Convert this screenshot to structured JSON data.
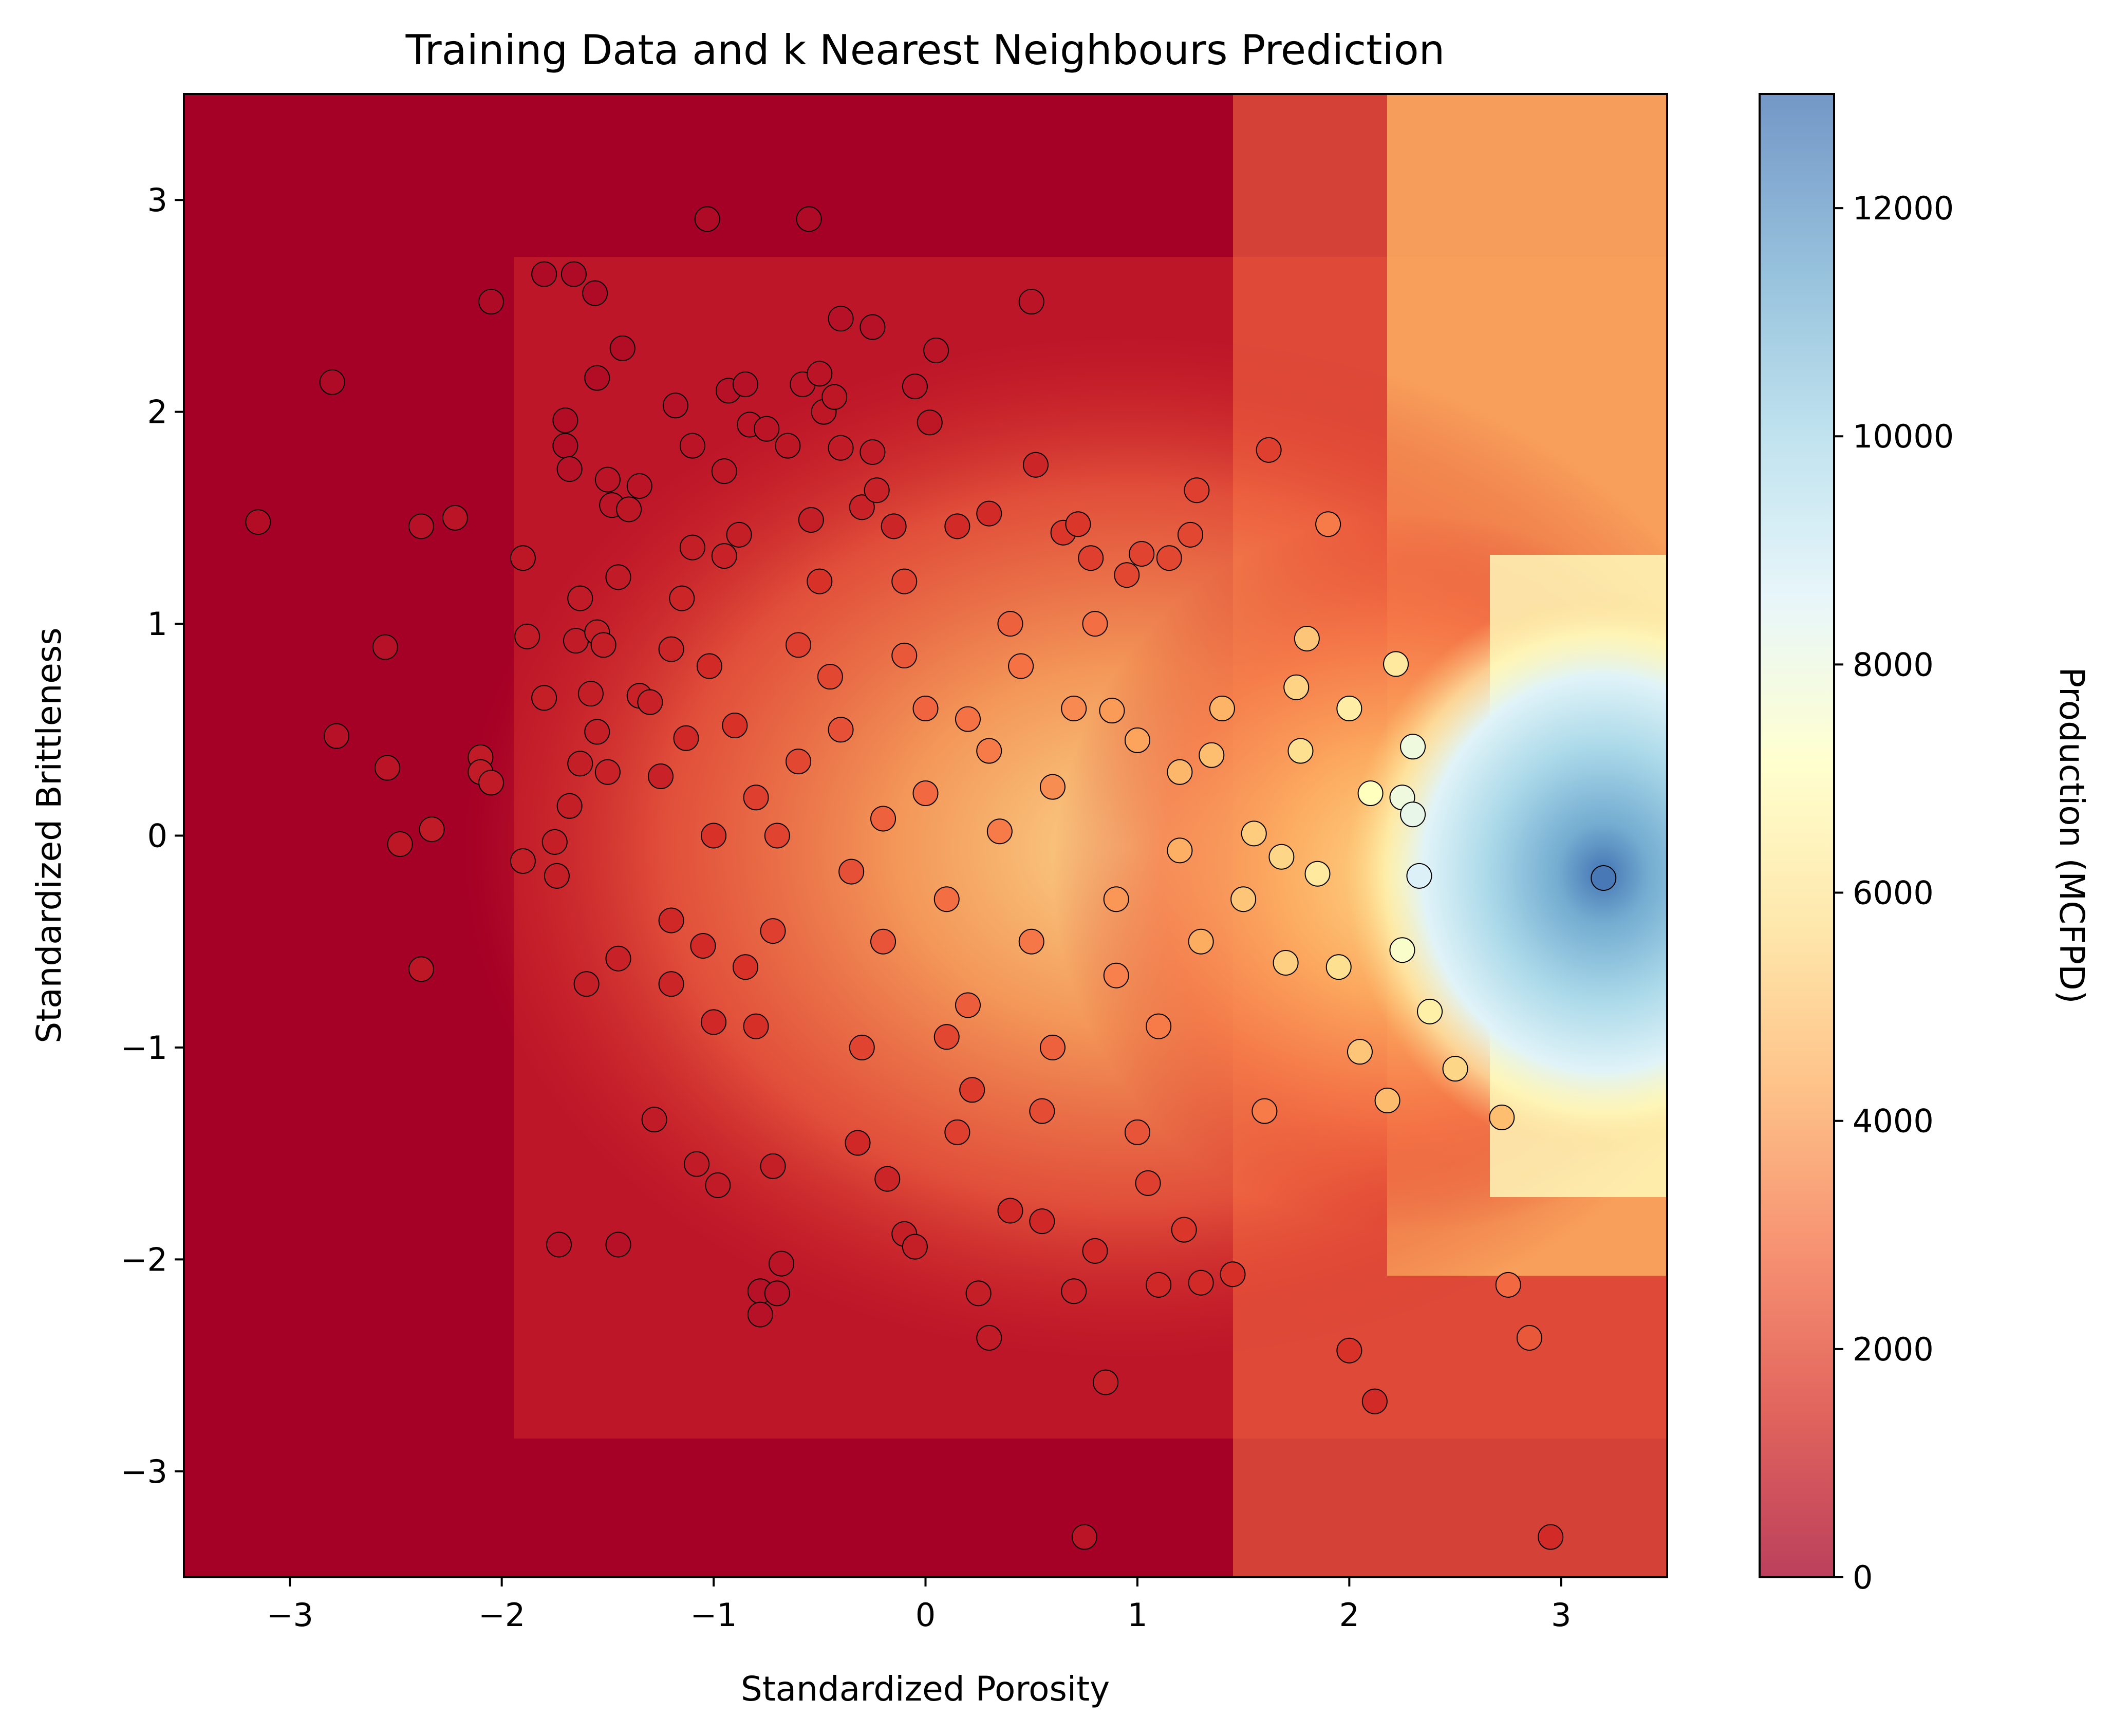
{
  "chart_data": {
    "type": "scatter",
    "title": "Training Data and k Nearest Neighbours Prediction",
    "xlabel": "Standardized Porosity",
    "ylabel": "Standardized Brittleness",
    "xlim": [
      -3.5,
      3.5
    ],
    "ylim": [
      -3.5,
      3.5
    ],
    "xticks": [
      -3,
      -2,
      -1,
      0,
      1,
      2,
      3
    ],
    "yticks": [
      -3,
      -2,
      -1,
      0,
      1,
      2,
      3
    ],
    "grid": false,
    "legend": "none",
    "background": {
      "type": "heatmap",
      "description_values": "k nearest neighbours predicted production over the feature space",
      "cmap": [
        "#a50026",
        "#d73027",
        "#f46d43",
        "#fdae61",
        "#fee090",
        "#ffffbf",
        "#e0f3f8",
        "#abd9e9",
        "#74add1",
        "#4575b4"
      ]
    },
    "colorbar": {
      "label": "Production (MCFPD)",
      "range": [
        0,
        13000
      ],
      "ticks": [
        0,
        2000,
        4000,
        6000,
        8000,
        10000,
        12000
      ]
    },
    "points": [
      {
        "x": -3.15,
        "y": 1.48,
        "v": 400
      },
      {
        "x": -2.8,
        "y": 2.14,
        "v": 300
      },
      {
        "x": -2.78,
        "y": 0.47,
        "v": 500
      },
      {
        "x": -2.55,
        "y": 0.89,
        "v": 500
      },
      {
        "x": -2.54,
        "y": 0.32,
        "v": 600
      },
      {
        "x": -2.48,
        "y": -0.04,
        "v": 700
      },
      {
        "x": -2.38,
        "y": 1.46,
        "v": 500
      },
      {
        "x": -2.38,
        "y": -0.63,
        "v": 700
      },
      {
        "x": -2.33,
        "y": 0.03,
        "v": 800
      },
      {
        "x": -2.22,
        "y": 1.5,
        "v": 600
      },
      {
        "x": -2.1,
        "y": 0.37,
        "v": 800
      },
      {
        "x": -2.1,
        "y": 0.3,
        "v": 800
      },
      {
        "x": -2.05,
        "y": 2.52,
        "v": 300
      },
      {
        "x": -2.05,
        "y": 0.25,
        "v": 800
      },
      {
        "x": -1.9,
        "y": 1.31,
        "v": 700
      },
      {
        "x": -1.88,
        "y": 0.94,
        "v": 800
      },
      {
        "x": -1.9,
        "y": -0.12,
        "v": 900
      },
      {
        "x": -1.8,
        "y": 2.65,
        "v": 300
      },
      {
        "x": -1.8,
        "y": 0.65,
        "v": 900
      },
      {
        "x": -1.75,
        "y": -0.03,
        "v": 900
      },
      {
        "x": -1.74,
        "y": -0.19,
        "v": 900
      },
      {
        "x": -1.73,
        "y": -1.93,
        "v": 500
      },
      {
        "x": -1.7,
        "y": 1.96,
        "v": 400
      },
      {
        "x": -1.7,
        "y": 1.84,
        "v": 400
      },
      {
        "x": -1.68,
        "y": 1.73,
        "v": 500
      },
      {
        "x": -1.68,
        "y": 0.14,
        "v": 900
      },
      {
        "x": -1.66,
        "y": 2.65,
        "v": 300
      },
      {
        "x": -1.65,
        "y": 0.92,
        "v": 800
      },
      {
        "x": -1.63,
        "y": 1.12,
        "v": 800
      },
      {
        "x": -1.63,
        "y": 0.34,
        "v": 900
      },
      {
        "x": -1.6,
        "y": -0.7,
        "v": 900
      },
      {
        "x": -1.58,
        "y": 0.67,
        "v": 900
      },
      {
        "x": -1.56,
        "y": 2.56,
        "v": 300
      },
      {
        "x": -1.55,
        "y": 2.16,
        "v": 400
      },
      {
        "x": -1.55,
        "y": 0.96,
        "v": 900
      },
      {
        "x": -1.55,
        "y": 0.49,
        "v": 900
      },
      {
        "x": -1.52,
        "y": 0.9,
        "v": 900
      },
      {
        "x": -1.5,
        "y": 1.68,
        "v": 600
      },
      {
        "x": -1.48,
        "y": 1.56,
        "v": 600
      },
      {
        "x": -1.45,
        "y": 1.22,
        "v": 800
      },
      {
        "x": -1.45,
        "y": -0.58,
        "v": 1000
      },
      {
        "x": -1.43,
        "y": 2.3,
        "v": 400
      },
      {
        "x": -1.45,
        "y": -1.93,
        "v": 500
      },
      {
        "x": -1.4,
        "y": 1.54,
        "v": 700
      },
      {
        "x": -1.35,
        "y": 1.65,
        "v": 600
      },
      {
        "x": -1.35,
        "y": 0.66,
        "v": 1000
      },
      {
        "x": -1.3,
        "y": 0.63,
        "v": 1000
      },
      {
        "x": -1.28,
        "y": -1.34,
        "v": 800
      },
      {
        "x": -1.25,
        "y": 0.28,
        "v": 1000
      },
      {
        "x": -1.2,
        "y": 0.88,
        "v": 1100
      },
      {
        "x": -1.2,
        "y": -0.7,
        "v": 1100
      },
      {
        "x": -1.18,
        "y": 2.03,
        "v": 500
      },
      {
        "x": -1.15,
        "y": 1.12,
        "v": 1100
      },
      {
        "x": -1.13,
        "y": 0.46,
        "v": 1200
      },
      {
        "x": -1.1,
        "y": 1.84,
        "v": 600
      },
      {
        "x": -1.1,
        "y": 1.36,
        "v": 900
      },
      {
        "x": -1.08,
        "y": -1.55,
        "v": 800
      },
      {
        "x": -1.05,
        "y": -0.52,
        "v": 1300
      },
      {
        "x": -1.03,
        "y": 2.91,
        "v": 300
      },
      {
        "x": -1.02,
        "y": 0.8,
        "v": 1300
      },
      {
        "x": -1.0,
        "y": -0.88,
        "v": 1200
      },
      {
        "x": -0.98,
        "y": -1.65,
        "v": 800
      },
      {
        "x": -0.95,
        "y": 1.72,
        "v": 700
      },
      {
        "x": -0.95,
        "y": 1.32,
        "v": 1000
      },
      {
        "x": -0.93,
        "y": 2.1,
        "v": 500
      },
      {
        "x": -0.9,
        "y": 0.52,
        "v": 1500
      },
      {
        "x": -0.88,
        "y": 1.42,
        "v": 900
      },
      {
        "x": -0.85,
        "y": 2.13,
        "v": 500
      },
      {
        "x": -0.85,
        "y": -0.62,
        "v": 1500
      },
      {
        "x": -0.83,
        "y": 1.94,
        "v": 600
      },
      {
        "x": -0.8,
        "y": 0.18,
        "v": 1800
      },
      {
        "x": -0.78,
        "y": -2.15,
        "v": 500
      },
      {
        "x": -0.78,
        "y": -2.26,
        "v": 500
      },
      {
        "x": -0.75,
        "y": 1.92,
        "v": 600
      },
      {
        "x": -0.72,
        "y": -0.45,
        "v": 1800
      },
      {
        "x": -0.72,
        "y": -1.56,
        "v": 900
      },
      {
        "x": -0.7,
        "y": -2.16,
        "v": 500
      },
      {
        "x": -0.68,
        "y": -2.02,
        "v": 600
      },
      {
        "x": -0.65,
        "y": 1.84,
        "v": 700
      },
      {
        "x": -0.6,
        "y": 0.35,
        "v": 2000
      },
      {
        "x": -0.58,
        "y": 2.13,
        "v": 600
      },
      {
        "x": -0.55,
        "y": 2.91,
        "v": 300
      },
      {
        "x": -0.54,
        "y": 1.49,
        "v": 900
      },
      {
        "x": -0.5,
        "y": 2.18,
        "v": 600
      },
      {
        "x": -0.48,
        "y": 2.0,
        "v": 700
      },
      {
        "x": -0.45,
        "y": 0.75,
        "v": 2000
      },
      {
        "x": -0.43,
        "y": 2.07,
        "v": 700
      },
      {
        "x": -0.4,
        "y": 2.44,
        "v": 500
      },
      {
        "x": -0.4,
        "y": 1.83,
        "v": 800
      },
      {
        "x": -0.35,
        "y": -0.17,
        "v": 2200
      },
      {
        "x": -0.32,
        "y": -1.45,
        "v": 1200
      },
      {
        "x": -0.3,
        "y": 1.55,
        "v": 1000
      },
      {
        "x": -0.25,
        "y": 2.4,
        "v": 500
      },
      {
        "x": -0.25,
        "y": 1.81,
        "v": 800
      },
      {
        "x": -0.23,
        "y": 1.63,
        "v": 1000
      },
      {
        "x": -0.2,
        "y": 0.08,
        "v": 2600
      },
      {
        "x": -0.18,
        "y": -1.62,
        "v": 1100
      },
      {
        "x": -0.15,
        "y": 1.46,
        "v": 1100
      },
      {
        "x": -0.1,
        "y": 0.85,
        "v": 2400
      },
      {
        "x": -0.1,
        "y": -1.88,
        "v": 900
      },
      {
        "x": -0.05,
        "y": -1.94,
        "v": 900
      },
      {
        "x": -0.05,
        "y": 2.12,
        "v": 600
      },
      {
        "x": 0.0,
        "y": 0.2,
        "v": 2800
      },
      {
        "x": 0.02,
        "y": 1.95,
        "v": 700
      },
      {
        "x": 0.05,
        "y": 2.29,
        "v": 600
      },
      {
        "x": 0.1,
        "y": -0.95,
        "v": 2000
      },
      {
        "x": 0.15,
        "y": 1.46,
        "v": 1300
      },
      {
        "x": 0.2,
        "y": 0.55,
        "v": 3000
      },
      {
        "x": 0.22,
        "y": -1.2,
        "v": 1700
      },
      {
        "x": 0.25,
        "y": -2.16,
        "v": 900
      },
      {
        "x": 0.3,
        "y": 1.52,
        "v": 1300
      },
      {
        "x": 0.3,
        "y": -2.37,
        "v": 800
      },
      {
        "x": 0.35,
        "y": 0.02,
        "v": 3200
      },
      {
        "x": 0.4,
        "y": -1.77,
        "v": 1200
      },
      {
        "x": 0.45,
        "y": 0.8,
        "v": 3000
      },
      {
        "x": 0.5,
        "y": 2.52,
        "v": 600
      },
      {
        "x": 0.52,
        "y": 1.75,
        "v": 1100
      },
      {
        "x": 0.55,
        "y": -1.82,
        "v": 1200
      },
      {
        "x": 0.6,
        "y": 0.23,
        "v": 3600
      },
      {
        "x": 0.65,
        "y": 1.43,
        "v": 1600
      },
      {
        "x": 0.7,
        "y": -2.15,
        "v": 1000
      },
      {
        "x": 0.72,
        "y": 1.47,
        "v": 1600
      },
      {
        "x": 0.75,
        "y": -3.31,
        "v": 600
      },
      {
        "x": 0.78,
        "y": 1.31,
        "v": 1800
      },
      {
        "x": 0.8,
        "y": -1.96,
        "v": 1200
      },
      {
        "x": 0.85,
        "y": -2.58,
        "v": 900
      },
      {
        "x": 0.88,
        "y": 0.59,
        "v": 3900
      },
      {
        "x": 0.9,
        "y": -0.66,
        "v": 3300
      },
      {
        "x": 0.95,
        "y": 1.23,
        "v": 2000
      },
      {
        "x": 1.0,
        "y": 0.45,
        "v": 4100
      },
      {
        "x": 1.02,
        "y": 1.33,
        "v": 1900
      },
      {
        "x": 1.05,
        "y": -1.64,
        "v": 1800
      },
      {
        "x": 1.1,
        "y": -2.12,
        "v": 1200
      },
      {
        "x": 1.15,
        "y": 1.31,
        "v": 2000
      },
      {
        "x": 1.2,
        "y": -0.07,
        "v": 4400
      },
      {
        "x": 1.22,
        "y": -1.86,
        "v": 1600
      },
      {
        "x": 1.25,
        "y": 1.42,
        "v": 2000
      },
      {
        "x": 1.28,
        "y": 1.63,
        "v": 1800
      },
      {
        "x": 1.3,
        "y": -2.11,
        "v": 1300
      },
      {
        "x": 1.35,
        "y": 0.38,
        "v": 4800
      },
      {
        "x": 1.45,
        "y": -2.07,
        "v": 1400
      },
      {
        "x": 1.5,
        "y": -0.3,
        "v": 5000
      },
      {
        "x": 1.55,
        "y": 0.01,
        "v": 5200
      },
      {
        "x": 1.62,
        "y": 1.82,
        "v": 1800
      },
      {
        "x": 1.68,
        "y": -0.1,
        "v": 5500
      },
      {
        "x": 1.75,
        "y": 0.7,
        "v": 5400
      },
      {
        "x": 1.77,
        "y": 0.4,
        "v": 5800
      },
      {
        "x": 1.8,
        "y": 0.93,
        "v": 5000
      },
      {
        "x": 1.85,
        "y": -0.18,
        "v": 6200
      },
      {
        "x": 1.9,
        "y": 1.47,
        "v": 3200
      },
      {
        "x": 1.95,
        "y": -0.62,
        "v": 5800
      },
      {
        "x": 2.0,
        "y": -2.43,
        "v": 1500
      },
      {
        "x": 2.0,
        "y": 0.6,
        "v": 6400
      },
      {
        "x": 2.05,
        "y": -1.02,
        "v": 5000
      },
      {
        "x": 2.1,
        "y": 0.2,
        "v": 7200
      },
      {
        "x": 2.12,
        "y": -2.67,
        "v": 1300
      },
      {
        "x": 2.18,
        "y": -1.25,
        "v": 4700
      },
      {
        "x": 2.22,
        "y": 0.81,
        "v": 6200
      },
      {
        "x": 2.25,
        "y": 0.18,
        "v": 8000
      },
      {
        "x": 2.25,
        "y": -0.54,
        "v": 7500
      },
      {
        "x": 2.3,
        "y": 0.42,
        "v": 8000
      },
      {
        "x": 2.3,
        "y": 0.1,
        "v": 8300
      },
      {
        "x": 2.33,
        "y": -0.19,
        "v": 8800
      },
      {
        "x": 2.38,
        "y": -0.83,
        "v": 6500
      },
      {
        "x": 2.5,
        "y": -1.1,
        "v": 5500
      },
      {
        "x": 2.72,
        "y": -1.33,
        "v": 4800
      },
      {
        "x": 2.75,
        "y": -2.12,
        "v": 2800
      },
      {
        "x": 2.85,
        "y": -2.37,
        "v": 2400
      },
      {
        "x": 2.95,
        "y": -3.31,
        "v": 1300
      },
      {
        "x": 3.2,
        "y": -0.2,
        "v": 12900
      },
      {
        "x": -0.6,
        "y": 0.9,
        "v": 1800
      },
      {
        "x": -0.4,
        "y": 0.5,
        "v": 2200
      },
      {
        "x": -0.2,
        "y": -0.5,
        "v": 2300
      },
      {
        "x": 0.1,
        "y": -0.3,
        "v": 2900
      },
      {
        "x": 0.3,
        "y": 0.4,
        "v": 3200
      },
      {
        "x": 0.5,
        "y": -0.5,
        "v": 3100
      },
      {
        "x": 0.7,
        "y": 0.6,
        "v": 3500
      },
      {
        "x": 0.9,
        "y": -0.3,
        "v": 3800
      },
      {
        "x": -0.8,
        "y": -0.9,
        "v": 1400
      },
      {
        "x": -0.3,
        "y": -1.0,
        "v": 1900
      },
      {
        "x": 0.2,
        "y": -0.8,
        "v": 2500
      },
      {
        "x": 0.6,
        "y": -1.0,
        "v": 2600
      },
      {
        "x": 1.1,
        "y": -0.9,
        "v": 3200
      },
      {
        "x": 1.3,
        "y": -0.5,
        "v": 4300
      },
      {
        "x": 1.4,
        "y": 0.6,
        "v": 4500
      },
      {
        "x": -1.0,
        "y": 0.0,
        "v": 1500
      },
      {
        "x": -0.7,
        "y": 0.0,
        "v": 1900
      },
      {
        "x": 0.0,
        "y": 0.6,
        "v": 2700
      },
      {
        "x": 0.4,
        "y": 1.0,
        "v": 2600
      },
      {
        "x": 0.8,
        "y": 1.0,
        "v": 2900
      },
      {
        "x": -0.1,
        "y": 1.2,
        "v": 1900
      },
      {
        "x": -0.5,
        "y": 1.2,
        "v": 1500
      },
      {
        "x": 0.15,
        "y": -1.4,
        "v": 1800
      },
      {
        "x": 0.55,
        "y": -1.3,
        "v": 2100
      },
      {
        "x": 1.0,
        "y": -1.4,
        "v": 2300
      },
      {
        "x": -1.2,
        "y": -0.4,
        "v": 1200
      },
      {
        "x": -1.5,
        "y": 0.3,
        "v": 1000
      },
      {
        "x": 1.6,
        "y": -1.3,
        "v": 3200
      },
      {
        "x": 1.7,
        "y": -0.6,
        "v": 5300
      },
      {
        "x": 1.2,
        "y": 0.3,
        "v": 4600
      }
    ]
  }
}
